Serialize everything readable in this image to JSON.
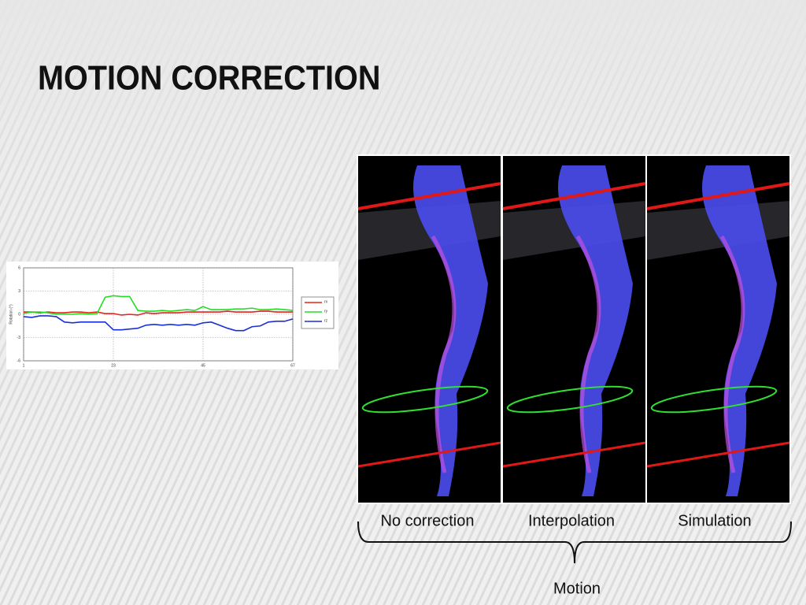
{
  "title": "MOTION CORRECTION",
  "chart_data": {
    "type": "line",
    "y_label": "Rotation (°)",
    "x": [
      1,
      3,
      5,
      7,
      9,
      11,
      13,
      15,
      17,
      19,
      21,
      23,
      25,
      27,
      29,
      31,
      33,
      35,
      37,
      39,
      41,
      43,
      45,
      47,
      49,
      51,
      53,
      55,
      57,
      59,
      61,
      63,
      65,
      67
    ],
    "series": [
      {
        "name": "rx",
        "color": "#e8221c",
        "values": [
          0.3,
          0.3,
          0.2,
          0.3,
          0.2,
          0.2,
          0.3,
          0.3,
          0.2,
          0.3,
          0.1,
          0.1,
          -0.1,
          0,
          -0.1,
          0.2,
          0.1,
          0.2,
          0.2,
          0.2,
          0.3,
          0.3,
          0.3,
          0.3,
          0.3,
          0.4,
          0.3,
          0.3,
          0.3,
          0.4,
          0.4,
          0.3,
          0.3,
          0.3
        ]
      },
      {
        "name": "ry",
        "color": "#22dd22",
        "values": [
          0.1,
          0.3,
          0.3,
          0.2,
          0,
          0,
          0,
          0.1,
          0,
          0.1,
          2.2,
          2.4,
          2.3,
          2.3,
          0.5,
          0.4,
          0.4,
          0.5,
          0.4,
          0.5,
          0.6,
          0.5,
          1.0,
          0.6,
          0.6,
          0.6,
          0.7,
          0.7,
          0.8,
          0.6,
          0.6,
          0.7,
          0.6,
          0.5
        ]
      },
      {
        "name": "rz",
        "color": "#1b2fd6",
        "values": [
          -0.3,
          -0.4,
          -0.2,
          -0.2,
          -0.3,
          -1.0,
          -1.1,
          -1.0,
          -1.0,
          -1.0,
          -1.0,
          -2.0,
          -2.0,
          -1.9,
          -1.8,
          -1.4,
          -1.3,
          -1.4,
          -1.3,
          -1.4,
          -1.3,
          -1.4,
          -1.1,
          -1.0,
          -1.4,
          -1.8,
          -2.1,
          -2.1,
          -1.6,
          -1.5,
          -1.0,
          -0.9,
          -0.9,
          -0.6
        ]
      }
    ],
    "xlim": [
      1,
      67
    ],
    "xticks": [
      1,
      23,
      45,
      67
    ],
    "ylim": [
      -6,
      6
    ],
    "yticks": [
      -6,
      -3,
      0,
      3,
      6
    ],
    "grid": true
  },
  "captions": [
    "No correction",
    "Interpolation",
    "Simulation"
  ],
  "brace_label": "Motion"
}
